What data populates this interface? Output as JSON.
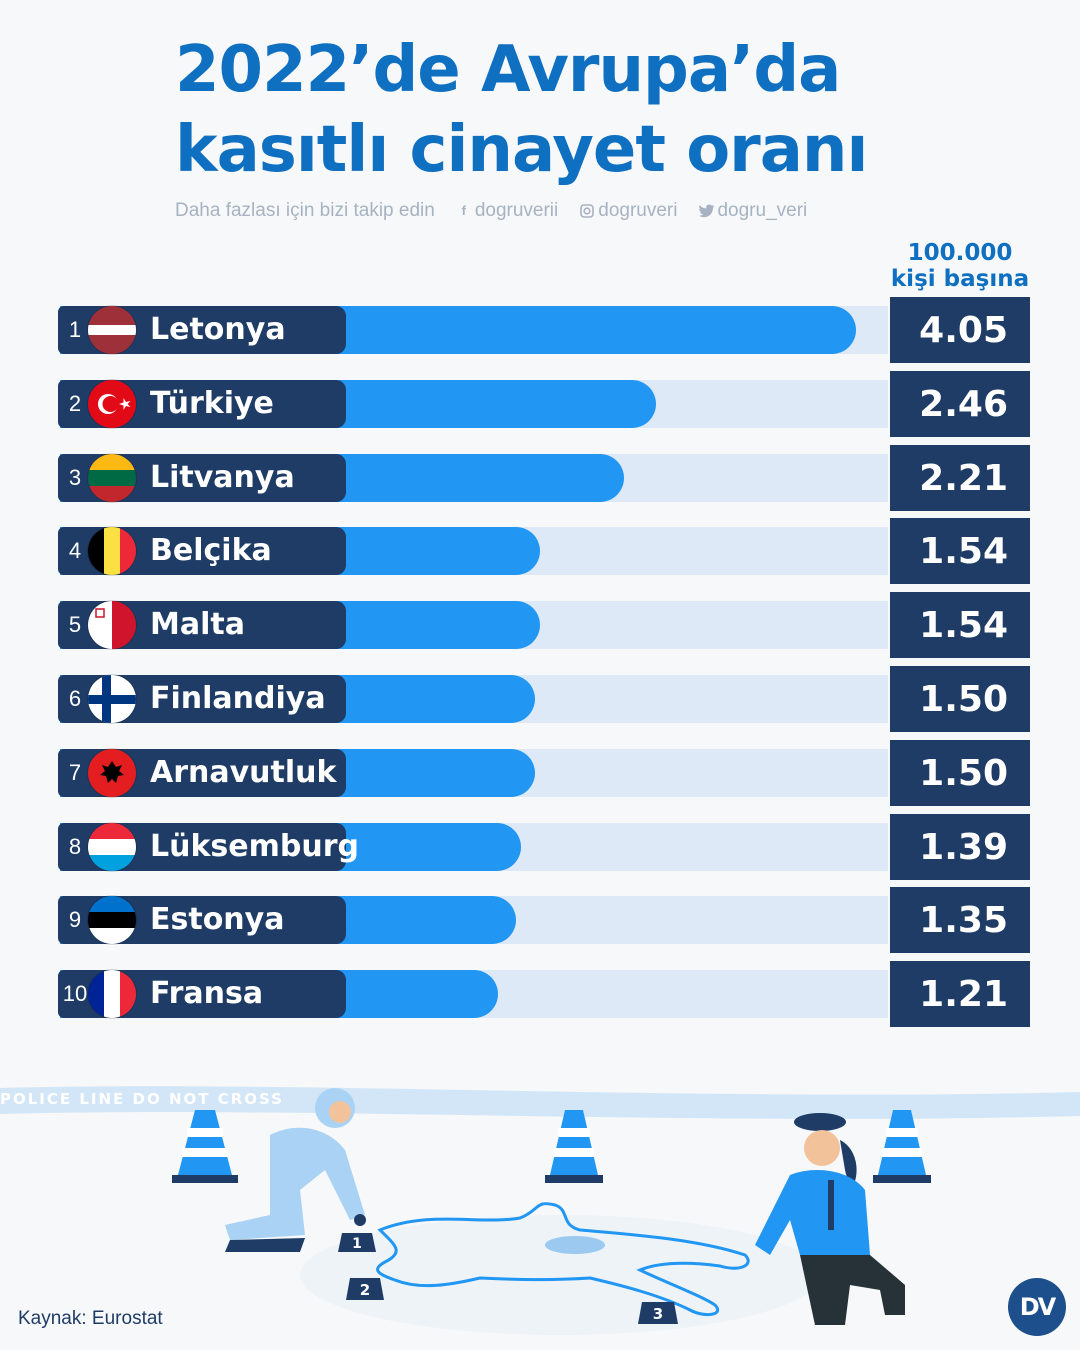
{
  "header": {
    "title_line1": "2022’de Avrupa’da",
    "title_line2": "kasıtlı cinayet oranı",
    "follow_text": "Daha fazlası için bizi takip edin",
    "social": [
      {
        "icon": "facebook-icon",
        "handle": "dogruverii"
      },
      {
        "icon": "instagram-icon",
        "handle": "dogruveri"
      },
      {
        "icon": "twitter-icon",
        "handle": "dogru_veri"
      }
    ]
  },
  "chart_data": {
    "type": "bar",
    "orientation": "horizontal",
    "unit_label_line1": "100.000",
    "unit_label_line2": "kişi başına",
    "xlim": [
      0,
      4.05
    ],
    "categories": [
      "Letonya",
      "Türkiye",
      "Litvanya",
      "Belçika",
      "Malta",
      "Finlandiya",
      "Arnavutluk",
      "Lüksemburg",
      "Estonya",
      "Fransa"
    ],
    "ranks": [
      "1",
      "2",
      "3",
      "4",
      "5",
      "6",
      "7",
      "8",
      "9",
      "10"
    ],
    "values": [
      4.05,
      2.46,
      2.21,
      1.54,
      1.54,
      1.5,
      1.5,
      1.39,
      1.35,
      1.21
    ],
    "value_labels": [
      "4.05",
      "2.46",
      "2.21",
      "1.54",
      "1.54",
      "1.50",
      "1.50",
      "1.39",
      "1.35",
      "1.21"
    ],
    "flags": [
      "latvia-flag-icon",
      "turkey-flag-icon",
      "lithuania-flag-icon",
      "belgium-flag-icon",
      "malta-flag-icon",
      "finland-flag-icon",
      "albania-flag-icon",
      "luxembourg-flag-icon",
      "estonia-flag-icon",
      "france-flag-icon"
    ],
    "bar_color": "#2196f3",
    "track_color": "#dde9f6",
    "label_color": "#1f3c66"
  },
  "footer": {
    "source": "Kaynak: Eurostat",
    "logo_text": "DV"
  },
  "illustration": {
    "tape_text": "POLICE LINE DO NOT CROSS",
    "markers": [
      "1",
      "2",
      "3"
    ]
  }
}
